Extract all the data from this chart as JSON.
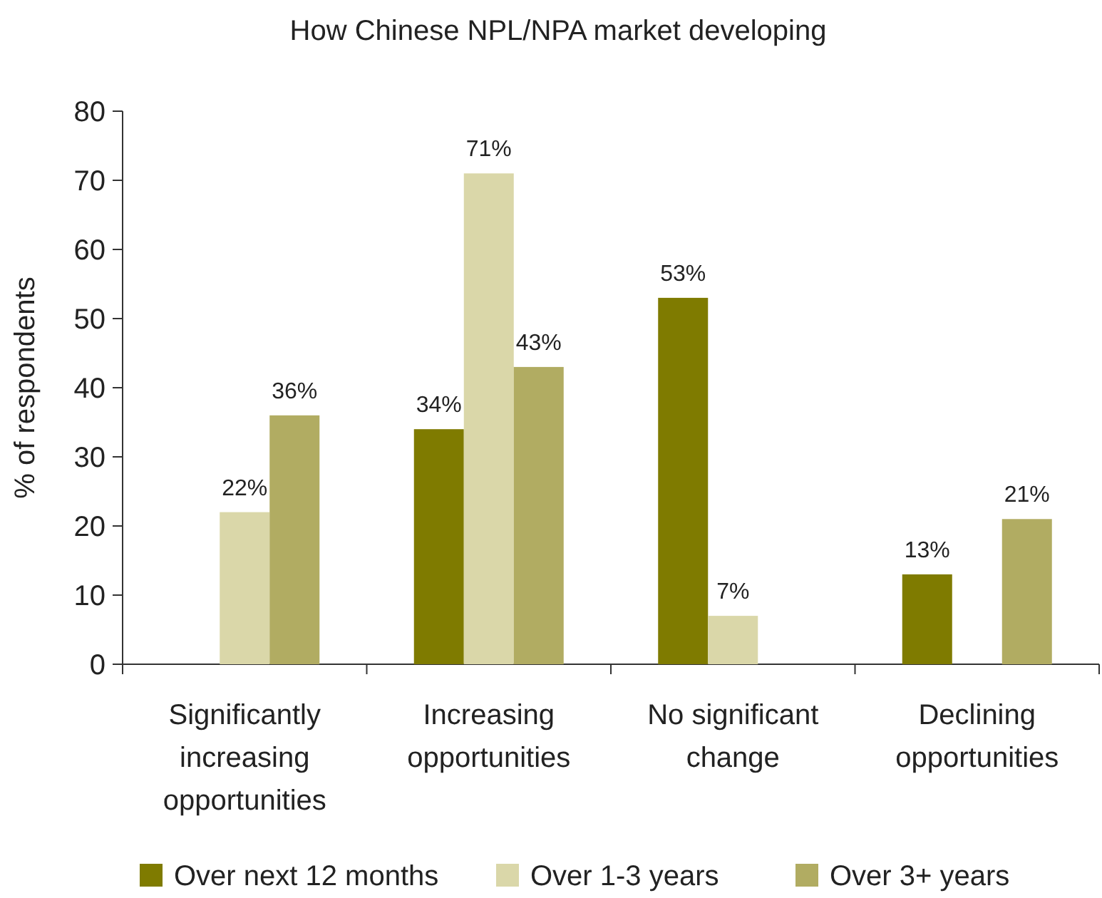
{
  "chart_data": {
    "type": "bar",
    "title": "How Chinese NPL/NPA market developing",
    "ylabel": "% of respondents",
    "categories": [
      "Significantly increasing opportunities",
      "Increasing opportunities",
      "No significant change",
      "Declining opportunities"
    ],
    "series": [
      {
        "name": "Over next 12 months",
        "color": "#7f7b00",
        "values": [
          null,
          34,
          53,
          13
        ],
        "value_labels": [
          null,
          "34%",
          "53%",
          "13%"
        ]
      },
      {
        "name": "Over 1-3 years",
        "color": "#dad7a9",
        "values": [
          22,
          71,
          7,
          null
        ],
        "value_labels": [
          "22%",
          "71%",
          "7%",
          null
        ]
      },
      {
        "name": "Over 3+ years",
        "color": "#b1ac62",
        "values": [
          36,
          43,
          null,
          21
        ],
        "value_labels": [
          "36%",
          "43%",
          null,
          "21%"
        ]
      }
    ],
    "ylim": [
      0,
      80
    ],
    "yticks": [
      0,
      10,
      20,
      30,
      40,
      50,
      60,
      70,
      80
    ],
    "grid": false,
    "legend": "bottom"
  }
}
